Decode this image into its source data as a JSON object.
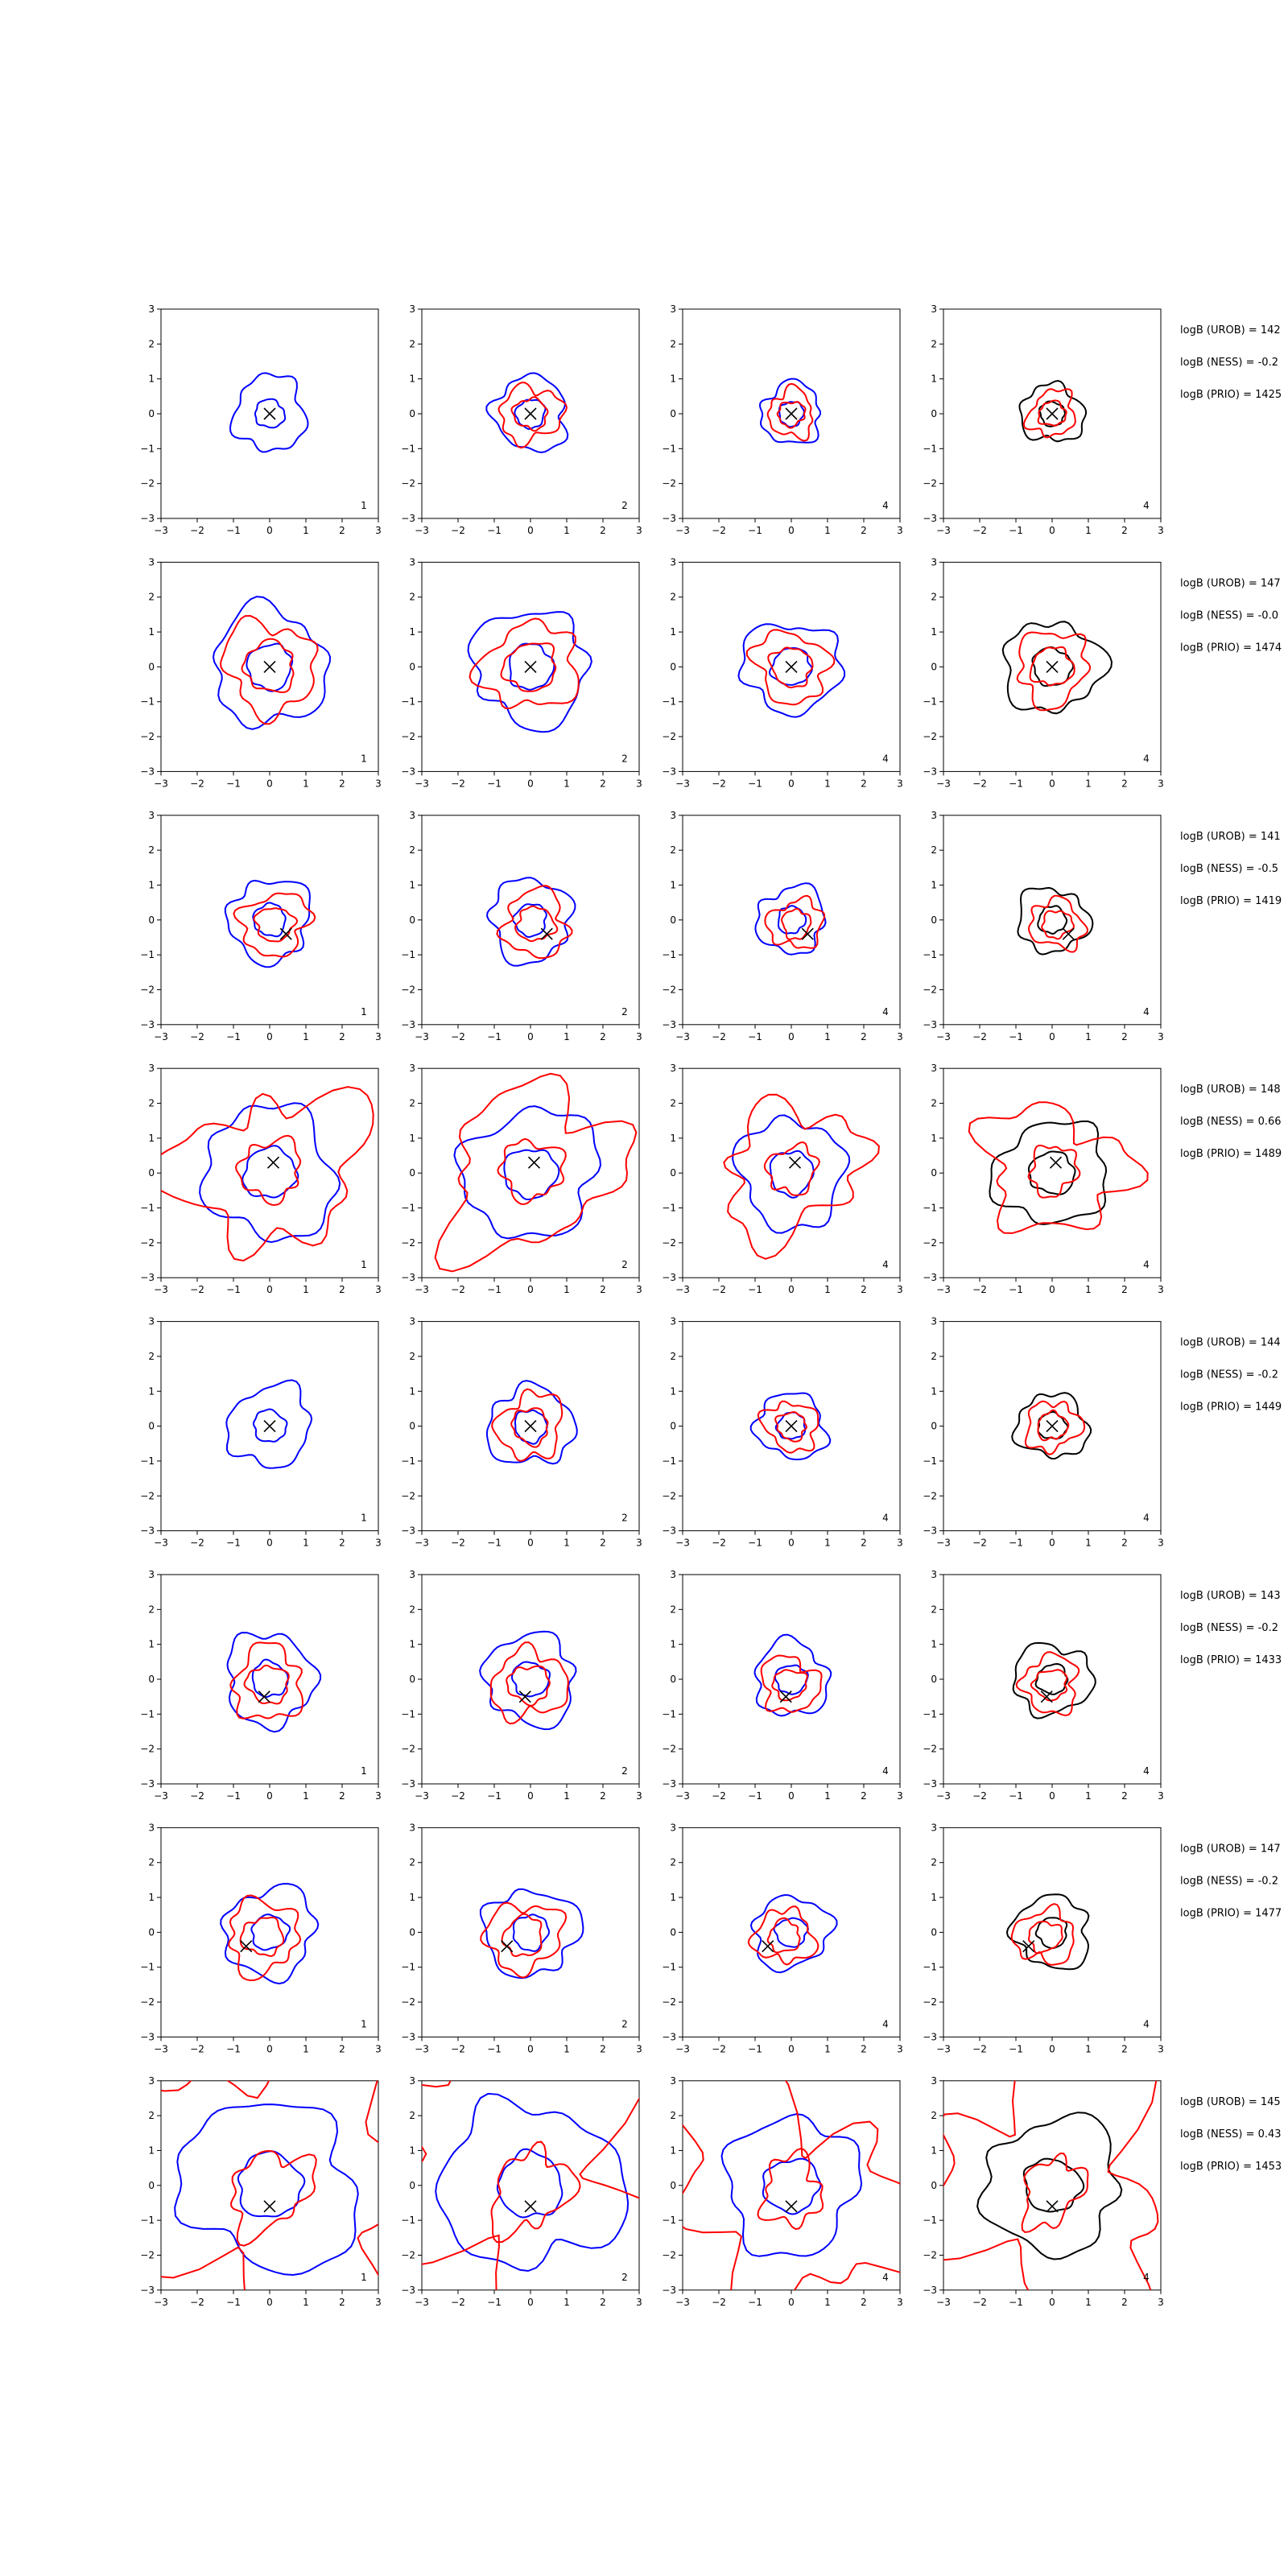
{
  "chart_data": {
    "type": "contour-grid",
    "rows": 8,
    "cols": 4,
    "xlim": [
      -3,
      3
    ],
    "ylim": [
      -3,
      3
    ],
    "ticks": [
      -3,
      -2,
      -1,
      0,
      1,
      2,
      3
    ],
    "tick_labels": [
      "−3",
      "−2",
      "−1",
      "0",
      "1",
      "2",
      "3"
    ],
    "panel_labels": [
      "1",
      "2",
      "4",
      "4"
    ],
    "colors": {
      "blue": "#0000ff",
      "red": "#ff0000",
      "black": "#000000"
    },
    "row_data": [
      {
        "marker": [
          0.0,
          0.0
        ],
        "scale": 0.9,
        "spread": 1.0,
        "annotations": [
          "logB (UROB) = 142",
          "logB (NESS) = -0.2",
          "logB (PRIO) = 1425"
        ]
      },
      {
        "marker": [
          0.0,
          0.0
        ],
        "scale": 1.4,
        "spread": 1.0,
        "annotations": [
          "logB (UROB) = 147",
          "logB (NESS) = -0.0",
          "logB (PRIO) = 1474"
        ]
      },
      {
        "marker": [
          0.45,
          -0.4
        ],
        "scale": 1.0,
        "spread": 1.0,
        "annotations": [
          "logB (UROB) = 141",
          "logB (NESS) = -0.5",
          "logB (PRIO) = 1419"
        ]
      },
      {
        "marker": [
          0.1,
          0.3
        ],
        "scale": 1.6,
        "spread": 1.5,
        "annotations": [
          "logB (UROB) = 148",
          "logB (NESS) = 0.66",
          "logB (PRIO) = 1489"
        ]
      },
      {
        "marker": [
          0.0,
          0.0
        ],
        "scale": 1.0,
        "spread": 1.0,
        "annotations": [
          "logB (UROB) = 144",
          "logB (NESS) = -0.2",
          "logB (PRIO) = 1449"
        ]
      },
      {
        "marker": [
          -0.15,
          -0.5
        ],
        "scale": 1.1,
        "spread": 1.0,
        "annotations": [
          "logB (UROB) = 143",
          "logB (NESS) = -0.2",
          "logB (PRIO) = 1433"
        ]
      },
      {
        "marker": [
          -0.65,
          -0.4
        ],
        "scale": 1.1,
        "spread": 1.0,
        "annotations": [
          "logB (UROB) = 147",
          "logB (NESS) = -0.2",
          "logB (PRIO) = 1477"
        ]
      },
      {
        "marker": [
          0.0,
          -0.6
        ],
        "scale": 2.0,
        "spread": 2.0,
        "annotations": [
          "logB (UROB) = 145",
          "logB (NESS) = 0.43",
          "logB (PRIO) = 1453"
        ]
      }
    ]
  }
}
